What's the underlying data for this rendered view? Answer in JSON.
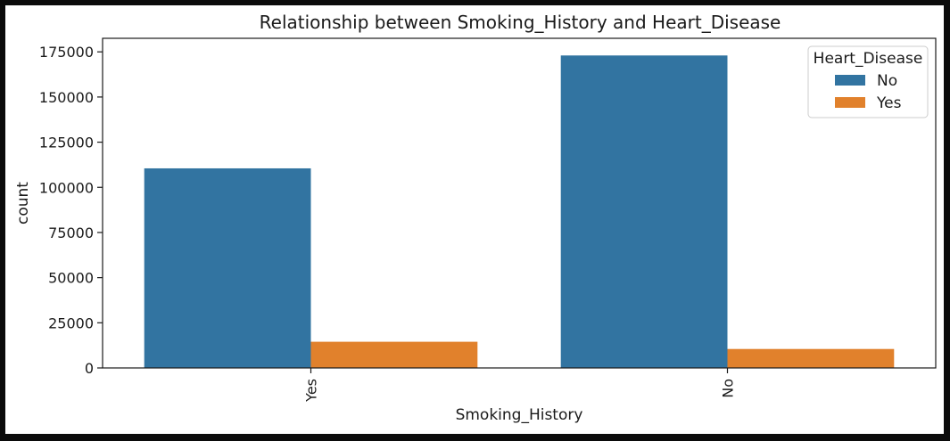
{
  "chart_data": {
    "type": "bar",
    "title": "Relationship between Smoking_History and Heart_Disease",
    "xlabel": "Smoking_History",
    "ylabel": "count",
    "categories": [
      "Yes",
      "No"
    ],
    "series": [
      {
        "name": "No",
        "values": [
          110500,
          173000
        ],
        "color": "#3274a1"
      },
      {
        "name": "Yes",
        "values": [
          14500,
          10500
        ],
        "color": "#e1812c"
      }
    ],
    "ylim": [
      0,
      182500
    ],
    "yticks": [
      0,
      25000,
      50000,
      75000,
      100000,
      125000,
      150000,
      175000
    ],
    "ytick_labels": [
      "0",
      "25000",
      "50000",
      "75000",
      "100000",
      "125000",
      "150000",
      "175000"
    ],
    "legend": {
      "title": "Heart_Disease",
      "position": "top-right"
    },
    "grid": false
  }
}
